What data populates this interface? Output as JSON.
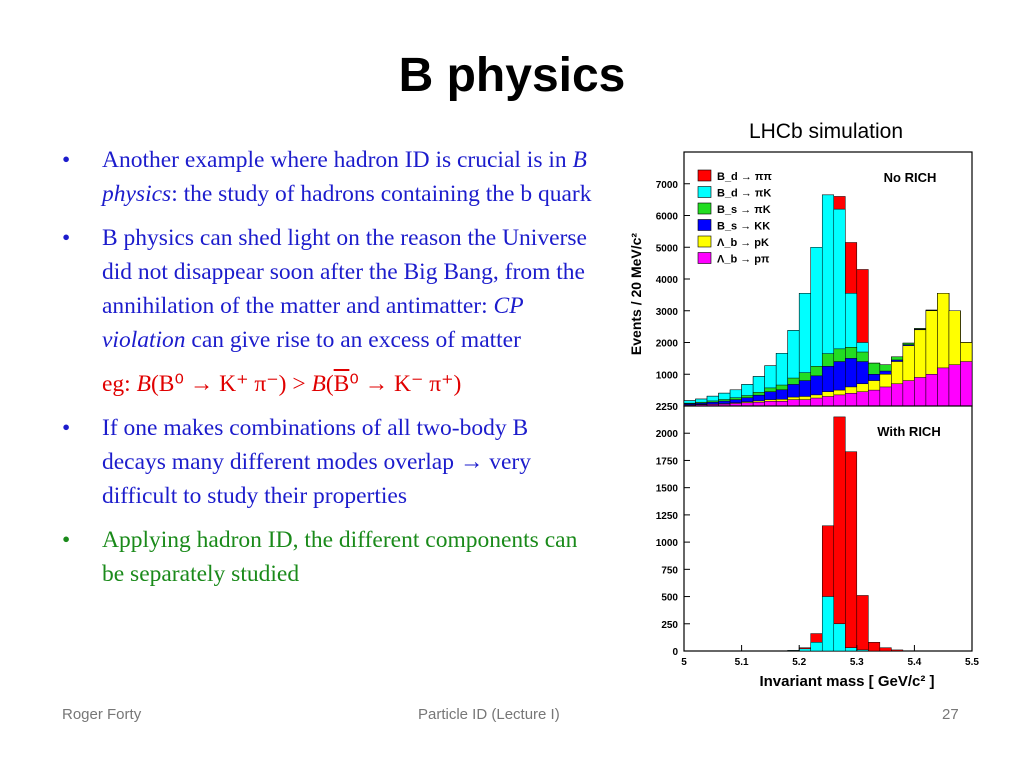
{
  "slide": {
    "title": "B physics",
    "bullets": [
      {
        "pre": "Another example where hadron ID is crucial is in ",
        "em": "B physics",
        "post": ": the study of hadrons containing the b quark"
      },
      {
        "pre": "B physics can shed light on the reason the Universe did not disappear soon after the Big Bang, from the annihilation of the matter and antimatter:  ",
        "em": "CP violation",
        "post": " can give rise to an excess of matter"
      }
    ],
    "example": {
      "prefix": "eg:  ",
      "B1": "B",
      "lhs": "(B⁰ → K⁺ π⁻) > ",
      "B2": "B",
      "open": "(",
      "bbar": "B",
      "rhs": "⁰ → K⁻ π⁺)"
    },
    "bullet3": "If one makes combinations of all two-body B decays many different modes overlap → very difficult to study their properties",
    "bullet4": "Applying hadron ID, the different components can be separately studied",
    "footer": {
      "left": "Roger Forty",
      "center": "Particle ID  (Lecture I)",
      "right": "27"
    },
    "colors": {
      "text": "#1c1ccc",
      "green": "#1a8a1a",
      "red": "#e00000"
    }
  },
  "chart_data": {
    "type": "area",
    "title": "LHCb simulation",
    "xlabel": "Invariant mass  [ GeV/c² ]",
    "ylabel": "Events  /  20 MeV/c²",
    "x_bins": [
      5.0,
      5.02,
      5.04,
      5.06,
      5.08,
      5.1,
      5.12,
      5.14,
      5.16,
      5.18,
      5.2,
      5.22,
      5.24,
      5.26,
      5.28,
      5.3,
      5.32,
      5.34,
      5.36,
      5.38,
      5.4,
      5.42,
      5.44,
      5.46,
      5.48
    ],
    "bin_width": 0.02,
    "xlim": [
      5.0,
      5.5
    ],
    "x_ticks": [
      "5",
      "5.1",
      "5.2",
      "5.3",
      "5.4",
      "5.5"
    ],
    "x_tick_values": [
      5.0,
      5.1,
      5.2,
      5.3,
      5.4,
      5.5
    ],
    "legend": [
      {
        "label": "B_d → ππ",
        "color": "#ff0000"
      },
      {
        "label": "B_d → πK",
        "color": "#00ffff"
      },
      {
        "label": "B_s → πK",
        "color": "#22dd22"
      },
      {
        "label": "B_s → KK",
        "color": "#0000ff"
      },
      {
        "label": "Λ_b → pK",
        "color": "#ffff00"
      },
      {
        "label": "Λ_b → pπ",
        "color": "#ff00ff"
      }
    ],
    "panels": [
      {
        "label": "No RICH",
        "ylim": [
          0,
          8000
        ],
        "y_ticks": [
          1000,
          2000,
          3000,
          4000,
          5000,
          6000,
          7000
        ],
        "stack_order": [
          "magenta",
          "yellow",
          "blue",
          "green",
          "cyan",
          "red"
        ],
        "series": [
          {
            "name": "Λb→pπ",
            "color": "#ff00ff",
            "values": [
              30,
              40,
              50,
              60,
              80,
              100,
              120,
              150,
              150,
              200,
              200,
              250,
              300,
              350,
              400,
              450,
              500,
              600,
              700,
              800,
              900,
              1000,
              1200,
              1300,
              1400
            ]
          },
          {
            "name": "Λb→pK",
            "color": "#ffff00",
            "values": [
              10,
              10,
              10,
              15,
              20,
              30,
              40,
              50,
              60,
              80,
              100,
              100,
              150,
              150,
              200,
              250,
              300,
              400,
              700,
              1100,
              1500,
              2000,
              2350,
              1700,
              600
            ]
          },
          {
            "name": "Bs→KK",
            "color": "#0000ff",
            "values": [
              30,
              40,
              60,
              80,
              100,
              130,
              180,
              250,
              300,
              400,
              500,
              600,
              800,
              900,
              900,
              700,
              200,
              100,
              50,
              30,
              20,
              10,
              0,
              0,
              0
            ]
          },
          {
            "name": "Bs→πK",
            "color": "#22dd22",
            "values": [
              20,
              30,
              40,
              50,
              60,
              70,
              90,
              120,
              150,
              200,
              250,
              300,
              400,
              400,
              350,
              300,
              350,
              200,
              100,
              50,
              20,
              10,
              0,
              0,
              0
            ]
          },
          {
            "name": "Bd→πK",
            "color": "#00ffff",
            "values": [
              80,
              100,
              150,
              200,
              250,
              350,
              500,
              700,
              1000,
              1500,
              2500,
              3750,
              5000,
              4400,
              1700,
              300,
              0,
              0,
              0,
              0,
              0,
              0,
              0,
              0,
              0
            ]
          },
          {
            "name": "Bd→ππ",
            "color": "#ff0000",
            "values": [
              0,
              0,
              0,
              0,
              0,
              0,
              0,
              0,
              0,
              0,
              0,
              0,
              0,
              400,
              1600,
              2300,
              0,
              0,
              0,
              0,
              0,
              0,
              0,
              0,
              0
            ]
          }
        ]
      },
      {
        "label": "With RICH",
        "ylim": [
          0,
          2250
        ],
        "y_ticks": [
          0,
          250,
          500,
          750,
          1000,
          1250,
          1500,
          1750,
          2000,
          2250
        ],
        "stack_order": [
          "magenta",
          "yellow",
          "blue",
          "green",
          "cyan",
          "red"
        ],
        "series": [
          {
            "name": "Λb→pπ",
            "color": "#ff00ff",
            "values": [
              0,
              0,
              0,
              0,
              0,
              0,
              0,
              0,
              0,
              0,
              0,
              0,
              0,
              0,
              0,
              0,
              0,
              0,
              0,
              0,
              0,
              0,
              0,
              0,
              0
            ]
          },
          {
            "name": "Λb→pK",
            "color": "#ffff00",
            "values": [
              0,
              0,
              0,
              0,
              0,
              0,
              0,
              0,
              0,
              0,
              0,
              0,
              0,
              0,
              0,
              0,
              0,
              0,
              0,
              0,
              0,
              0,
              0,
              0,
              0
            ]
          },
          {
            "name": "Bs→KK",
            "color": "#0000ff",
            "values": [
              0,
              0,
              0,
              0,
              0,
              0,
              0,
              0,
              0,
              0,
              0,
              0,
              0,
              0,
              0,
              0,
              0,
              0,
              0,
              0,
              0,
              0,
              0,
              0,
              0
            ]
          },
          {
            "name": "Bs→πK",
            "color": "#22dd22",
            "values": [
              0,
              0,
              0,
              0,
              0,
              0,
              0,
              0,
              0,
              0,
              0,
              0,
              0,
              0,
              0,
              0,
              0,
              0,
              0,
              0,
              0,
              0,
              0,
              0,
              0
            ]
          },
          {
            "name": "Bd→πK",
            "color": "#00ffff",
            "values": [
              0,
              0,
              0,
              0,
              0,
              0,
              0,
              0,
              0,
              5,
              20,
              80,
              500,
              250,
              30,
              10,
              0,
              0,
              0,
              0,
              0,
              0,
              0,
              0,
              0
            ]
          },
          {
            "name": "Bd→ππ",
            "color": "#ff0000",
            "values": [
              0,
              0,
              0,
              0,
              0,
              0,
              0,
              0,
              0,
              0,
              10,
              80,
              650,
              1900,
              1800,
              500,
              80,
              30,
              10,
              0,
              0,
              0,
              0,
              0,
              0
            ]
          }
        ]
      }
    ]
  }
}
